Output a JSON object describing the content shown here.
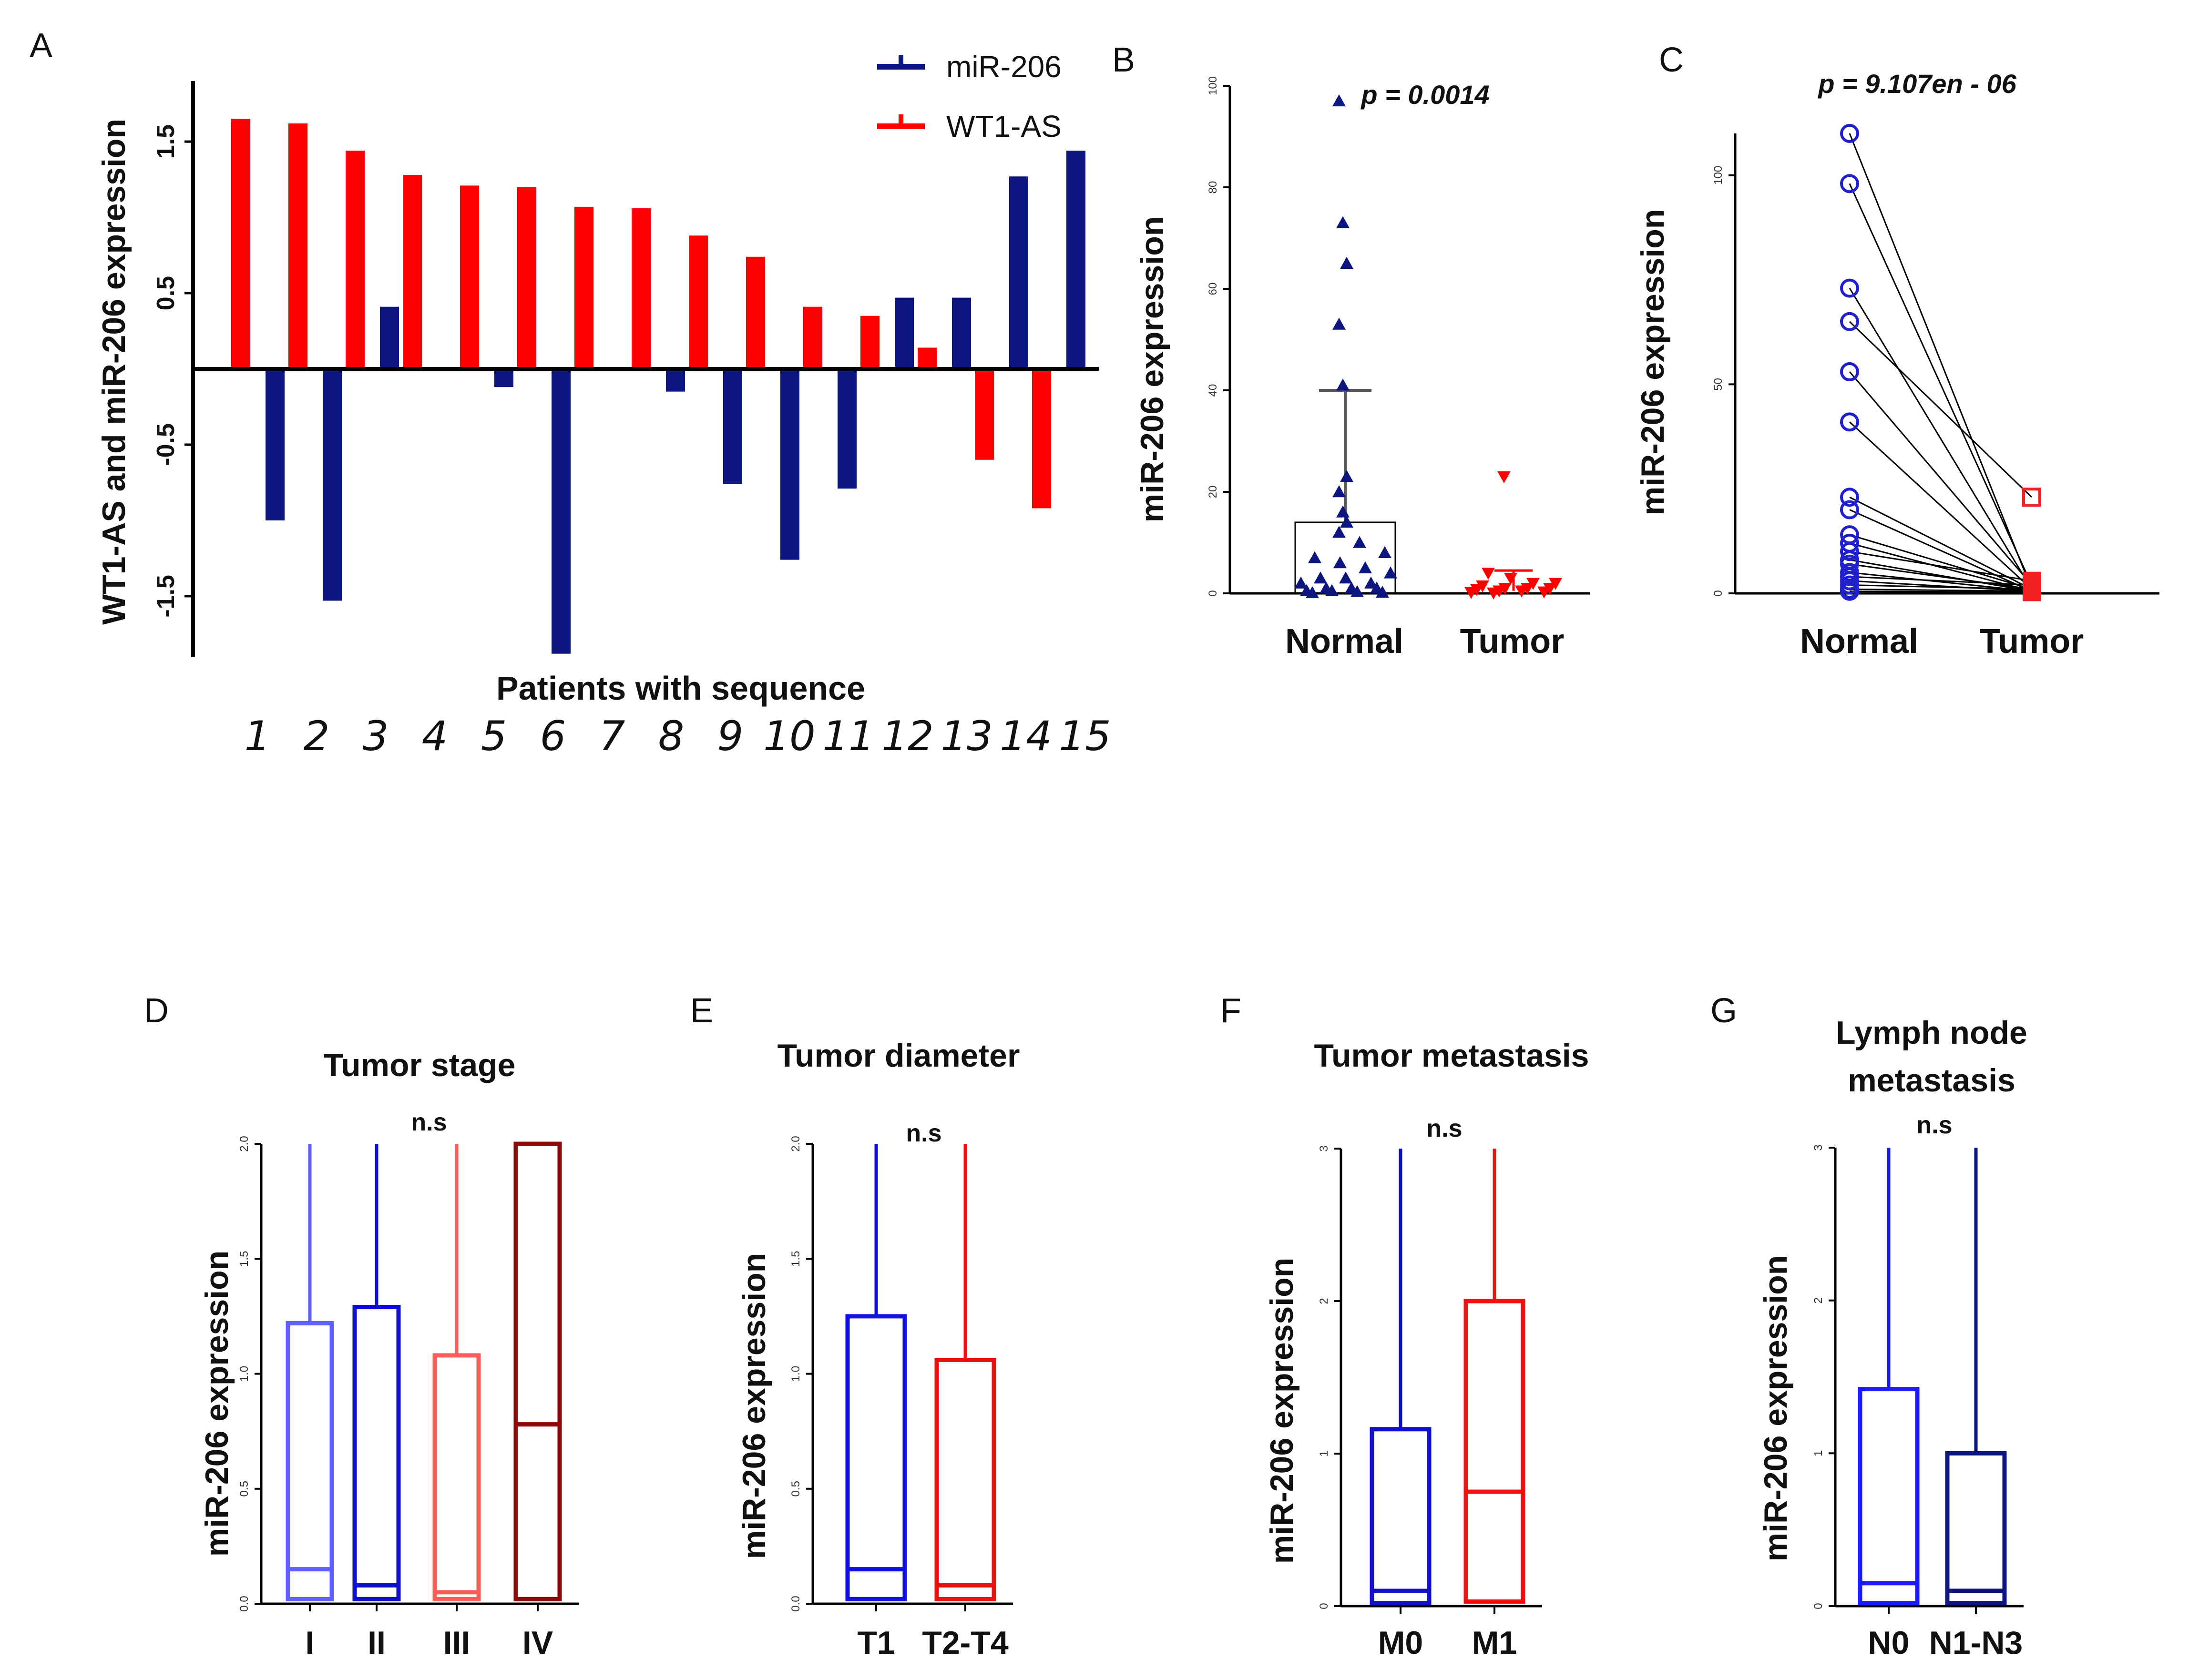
{
  "figure": {
    "colors": {
      "blue": "#0d1680",
      "red": "#ff0000",
      "axis": "#000000"
    }
  },
  "chart_data": [
    {
      "id": "A",
      "type": "bar",
      "panel_label": "A",
      "ylabel": "WT1-AS and miR-206   expression",
      "xlabel": "Patients with sequence",
      "categories": [
        "1",
        "2",
        "3",
        "4",
        "5",
        "6",
        "7",
        "8",
        "9",
        "10",
        "11",
        "12",
        "13",
        "14",
        "15"
      ],
      "ylim": [
        -1.9,
        1.9
      ],
      "yticks": [
        1.5,
        0.5,
        -0.5,
        -1.5
      ],
      "ytick_labels": [
        "1.5",
        "0.5",
        "-0.5",
        "-1.5"
      ],
      "legend": [
        "miR-206",
        "WT1-AS"
      ],
      "series": [
        {
          "name": "WT1-AS",
          "color": "#ff0000",
          "values": [
            1.65,
            1.62,
            1.44,
            1.28,
            1.21,
            1.2,
            1.07,
            1.06,
            0.88,
            0.74,
            0.41,
            0.35,
            0.14,
            -0.6,
            -0.92
          ]
        },
        {
          "name": "miR-206",
          "color": "#0d1680",
          "values": [
            -1.0,
            -1.53,
            0.41,
            0.0,
            -0.12,
            -1.88,
            0.0,
            -0.15,
            -0.76,
            -1.26,
            -0.79,
            0.47,
            0.47,
            1.27,
            1.44
          ]
        }
      ]
    },
    {
      "id": "B",
      "type": "scatter",
      "panel_label": "B",
      "ylabel": "miR-206   expression",
      "categories": [
        "Normal",
        "Tumor"
      ],
      "ylim": [
        0,
        100
      ],
      "yticks": [
        0,
        20,
        40,
        60,
        80,
        100
      ],
      "ytick_labels": [
        "0",
        "20",
        "40",
        "60",
        "80",
        "100"
      ],
      "p_value_label": "p = 0.0014",
      "normal_points": [
        97,
        73,
        65,
        53,
        41,
        23,
        20,
        16,
        14,
        12,
        10,
        8,
        7,
        6,
        5,
        4,
        3,
        3,
        2,
        2,
        1,
        1,
        1,
        0.5,
        0.5,
        0.3,
        0.2,
        0.1
      ],
      "normal_box": {
        "q1": 0,
        "q3": 14,
        "whisker": 40
      },
      "tumor_points": [
        23,
        4,
        3,
        2,
        2,
        1.5,
        1,
        1,
        1,
        0.8,
        0.5,
        0.5,
        0.3,
        0.2,
        0.1
      ],
      "tumor_errorbar": 4.5
    },
    {
      "id": "C",
      "type": "scatter",
      "panel_label": "C",
      "ylabel": "miR-206   expression",
      "categories": [
        "Normal",
        "Tumor"
      ],
      "ylim": [
        0,
        110
      ],
      "yticks": [
        0,
        50,
        100
      ],
      "ytick_labels": [
        "0",
        "50",
        "100"
      ],
      "p_value_label": "p = 9.107en - 06",
      "pairs": [
        [
          110,
          1
        ],
        [
          98,
          2
        ],
        [
          73,
          1
        ],
        [
          65,
          23
        ],
        [
          53,
          2
        ],
        [
          41,
          1
        ],
        [
          23,
          1
        ],
        [
          20,
          0.5
        ],
        [
          14,
          1
        ],
        [
          12,
          0.5
        ],
        [
          10,
          3
        ],
        [
          8,
          0.5
        ],
        [
          7,
          1
        ],
        [
          5,
          0.5
        ],
        [
          4,
          2
        ],
        [
          3,
          0.5
        ],
        [
          2,
          1
        ],
        [
          1,
          0.5
        ],
        [
          0.5,
          0.3
        ]
      ]
    },
    {
      "id": "D",
      "type": "box",
      "panel_label": "D",
      "title": "Tumor stage",
      "ylabel": "miR-206 expression",
      "ns_label": "n.s",
      "ylim": [
        0,
        2.0
      ],
      "yticks": [
        0,
        0.5,
        1.0,
        1.5,
        2.0
      ],
      "ytick_labels": [
        "0.0",
        "0.5",
        "1.0",
        "1.5",
        "2.0"
      ],
      "groups": [
        {
          "label": "I",
          "color": "#6060ff",
          "q1": 0.02,
          "median": 0.15,
          "q3": 1.22,
          "max": 2.0
        },
        {
          "label": "II",
          "color": "#1010cc",
          "q1": 0.02,
          "median": 0.08,
          "q3": 1.29,
          "max": 2.0
        },
        {
          "label": "III",
          "color": "#ff5a5a",
          "q1": 0.02,
          "median": 0.05,
          "q3": 1.08,
          "max": 2.0
        },
        {
          "label": "IV",
          "color": "#8b0a0a",
          "q1": 0.02,
          "median": 0.78,
          "q3": 2.0,
          "max": 2.0
        }
      ]
    },
    {
      "id": "E",
      "type": "box",
      "panel_label": "E",
      "title": "Tumor diameter",
      "ylabel": "miR-206 expression",
      "ns_label": "n.s",
      "ylim": [
        0,
        2.0
      ],
      "yticks": [
        0,
        0.5,
        1.0,
        1.5,
        2.0
      ],
      "ytick_labels": [
        "0.0",
        "0.5",
        "1.0",
        "1.5",
        "2.0"
      ],
      "groups": [
        {
          "label": "T1",
          "color": "#1010e0",
          "q1": 0.02,
          "median": 0.15,
          "q3": 1.25,
          "max": 2.0
        },
        {
          "label": "T2-T4",
          "color": "#ee1111",
          "q1": 0.02,
          "median": 0.08,
          "q3": 1.06,
          "max": 2.0
        }
      ]
    },
    {
      "id": "F",
      "type": "box",
      "panel_label": "F",
      "title": "Tumor metastasis",
      "ylabel": "miR-206 expression",
      "ns_label": "n.s",
      "ylim": [
        0,
        3
      ],
      "yticks": [
        0,
        1,
        2,
        3
      ],
      "ytick_labels": [
        "0",
        "1",
        "2",
        "3"
      ],
      "groups": [
        {
          "label": "M0",
          "color": "#1010c8",
          "q1": 0.02,
          "median": 0.1,
          "q3": 1.16,
          "max": 3.0
        },
        {
          "label": "M1",
          "color": "#ee1111",
          "q1": 0.03,
          "median": 0.75,
          "q3": 2.0,
          "max": 3.0
        }
      ]
    },
    {
      "id": "G",
      "type": "box",
      "panel_label": "G",
      "title_lines": [
        "Lymph node",
        "metastasis"
      ],
      "ylabel": "miR-206 expression",
      "ns_label": "n.s",
      "ylim": [
        0,
        3
      ],
      "yticks": [
        0,
        1,
        2,
        3
      ],
      "ytick_labels": [
        "0",
        "1",
        "2",
        "3"
      ],
      "groups": [
        {
          "label": "N0",
          "color": "#1a1aff",
          "q1": 0.02,
          "median": 0.15,
          "q3": 1.42,
          "max": 3.0
        },
        {
          "label": "N1-N3",
          "color": "#0d1680",
          "q1": 0.02,
          "median": 0.1,
          "q3": 1.0,
          "max": 3.0
        }
      ]
    }
  ]
}
